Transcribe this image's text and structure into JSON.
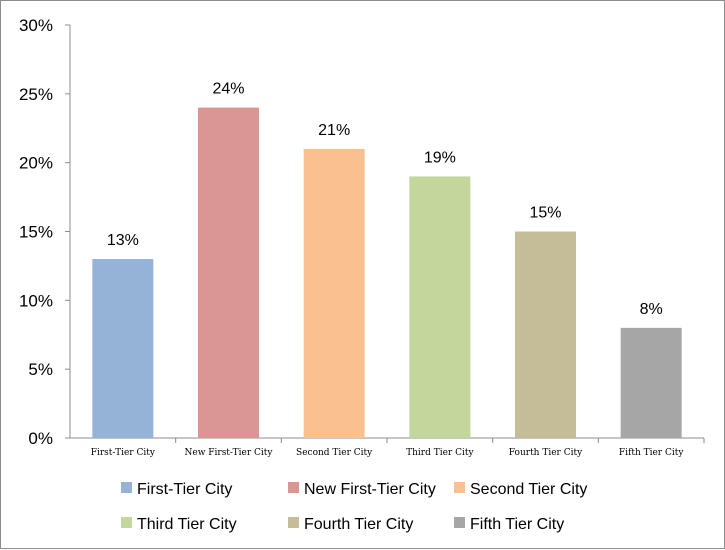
{
  "chart_data": {
    "type": "bar",
    "title": "",
    "xlabel": "",
    "ylabel": "",
    "categories": [
      "First-Tier City",
      "New First-Tier City",
      "Second Tier City",
      "Third Tier City",
      "Fourth Tier City",
      "Fifth Tier City"
    ],
    "values": [
      13,
      24,
      21,
      19,
      15,
      8
    ],
    "data_labels": [
      "13%",
      "24%",
      "21%",
      "19%",
      "15%",
      "8%"
    ],
    "y_ticks": [
      0,
      5,
      10,
      15,
      20,
      25,
      30
    ],
    "y_tick_labels": [
      "0%",
      "5%",
      "10%",
      "15%",
      "20%",
      "25%",
      "30%"
    ],
    "ylim": [
      0,
      30
    ],
    "grid": false,
    "legend_position": "bottom",
    "legend": [
      "First-Tier City",
      "New First-Tier City",
      "Second Tier City",
      "Third Tier City",
      "Fourth Tier City",
      "Fifth Tier City"
    ],
    "colors": [
      "#95b3d7",
      "#d99694",
      "#fac090",
      "#c3d69b",
      "#c4bd97",
      "#a6a6a6"
    ]
  }
}
